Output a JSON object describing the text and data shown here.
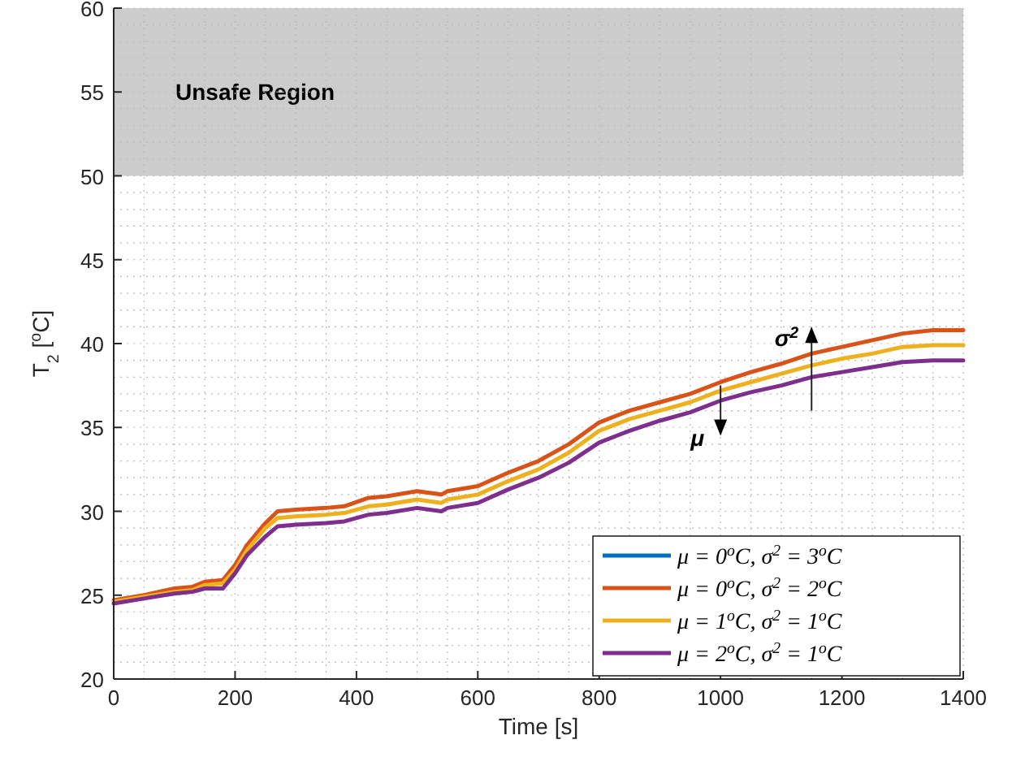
{
  "chart_data": {
    "type": "line",
    "xlabel": "Time [s]",
    "ylabel": "T$_{2}$ [$^{o}$C]",
    "x": [
      0,
      50,
      100,
      130,
      150,
      180,
      200,
      220,
      250,
      270,
      300,
      350,
      380,
      420,
      450,
      500,
      540,
      550,
      600,
      650,
      700,
      750,
      800,
      850,
      900,
      950,
      1000,
      1050,
      1100,
      1150,
      1200,
      1250,
      1300,
      1350,
      1400
    ],
    "series": [
      {
        "name": "μ = 0$^{o}$C,  σ$^{2}$ = 3$^{o}$C",
        "color": "#0072bd",
        "values": [
          null,
          null,
          null,
          null,
          null,
          null,
          null,
          null,
          null,
          null,
          null,
          null,
          null,
          null,
          null,
          null,
          null,
          null,
          null,
          null,
          null,
          null,
          null,
          null,
          null,
          null,
          null,
          null,
          null,
          null,
          null,
          null,
          null,
          null,
          null
        ]
      },
      {
        "name": "μ = 0$^{o}$C,  σ$^{2}$ = 2$^{o}$C",
        "color": "#d95319",
        "values": [
          24.7,
          25.0,
          25.4,
          25.5,
          25.8,
          25.9,
          26.8,
          28.0,
          29.3,
          30.0,
          30.1,
          30.2,
          30.3,
          30.8,
          30.9,
          31.2,
          31.0,
          31.2,
          31.5,
          32.3,
          33.0,
          34.0,
          35.3,
          36.0,
          36.5,
          37.0,
          37.7,
          38.3,
          38.8,
          39.4,
          39.8,
          40.2,
          40.6,
          40.8,
          40.8
        ]
      },
      {
        "name": "μ = 1$^{o}$C,  σ$^{2}$ = 1$^{o}$C",
        "color": "#edb120",
        "values": [
          24.6,
          24.9,
          25.2,
          25.3,
          25.6,
          25.7,
          26.5,
          27.7,
          29.0,
          29.6,
          29.7,
          29.8,
          29.9,
          30.3,
          30.4,
          30.7,
          30.5,
          30.7,
          31.0,
          31.8,
          32.5,
          33.5,
          34.8,
          35.5,
          36.0,
          36.5,
          37.2,
          37.7,
          38.2,
          38.7,
          39.1,
          39.4,
          39.8,
          39.9,
          39.9
        ]
      },
      {
        "name": "μ = 2$^{o}$C,  σ$^{2}$ = 1$^{o}$C",
        "color": "#7e2f8e",
        "values": [
          24.5,
          24.8,
          25.1,
          25.2,
          25.4,
          25.4,
          26.3,
          27.4,
          28.5,
          29.1,
          29.2,
          29.3,
          29.4,
          29.8,
          29.9,
          30.2,
          30.0,
          30.2,
          30.5,
          31.3,
          32.0,
          32.9,
          34.1,
          34.8,
          35.4,
          35.9,
          36.6,
          37.1,
          37.5,
          38.0,
          38.3,
          38.6,
          38.9,
          39.0,
          39.0
        ]
      }
    ],
    "xlim": [
      0,
      1400
    ],
    "xticks": [
      0,
      200,
      400,
      600,
      800,
      1000,
      1200,
      1400
    ],
    "ylim": [
      20,
      60
    ],
    "yticks": [
      20,
      25,
      30,
      35,
      40,
      45,
      50,
      55,
      60
    ],
    "bands": [
      {
        "axis": "y",
        "from": 50,
        "to": 60,
        "label": "Unsafe Region",
        "color": "#cccccc"
      }
    ],
    "annotations": [
      "σ$^{2}$",
      "μ"
    ],
    "grid": true,
    "legend": "bottom right",
    "line_style": "solid"
  }
}
